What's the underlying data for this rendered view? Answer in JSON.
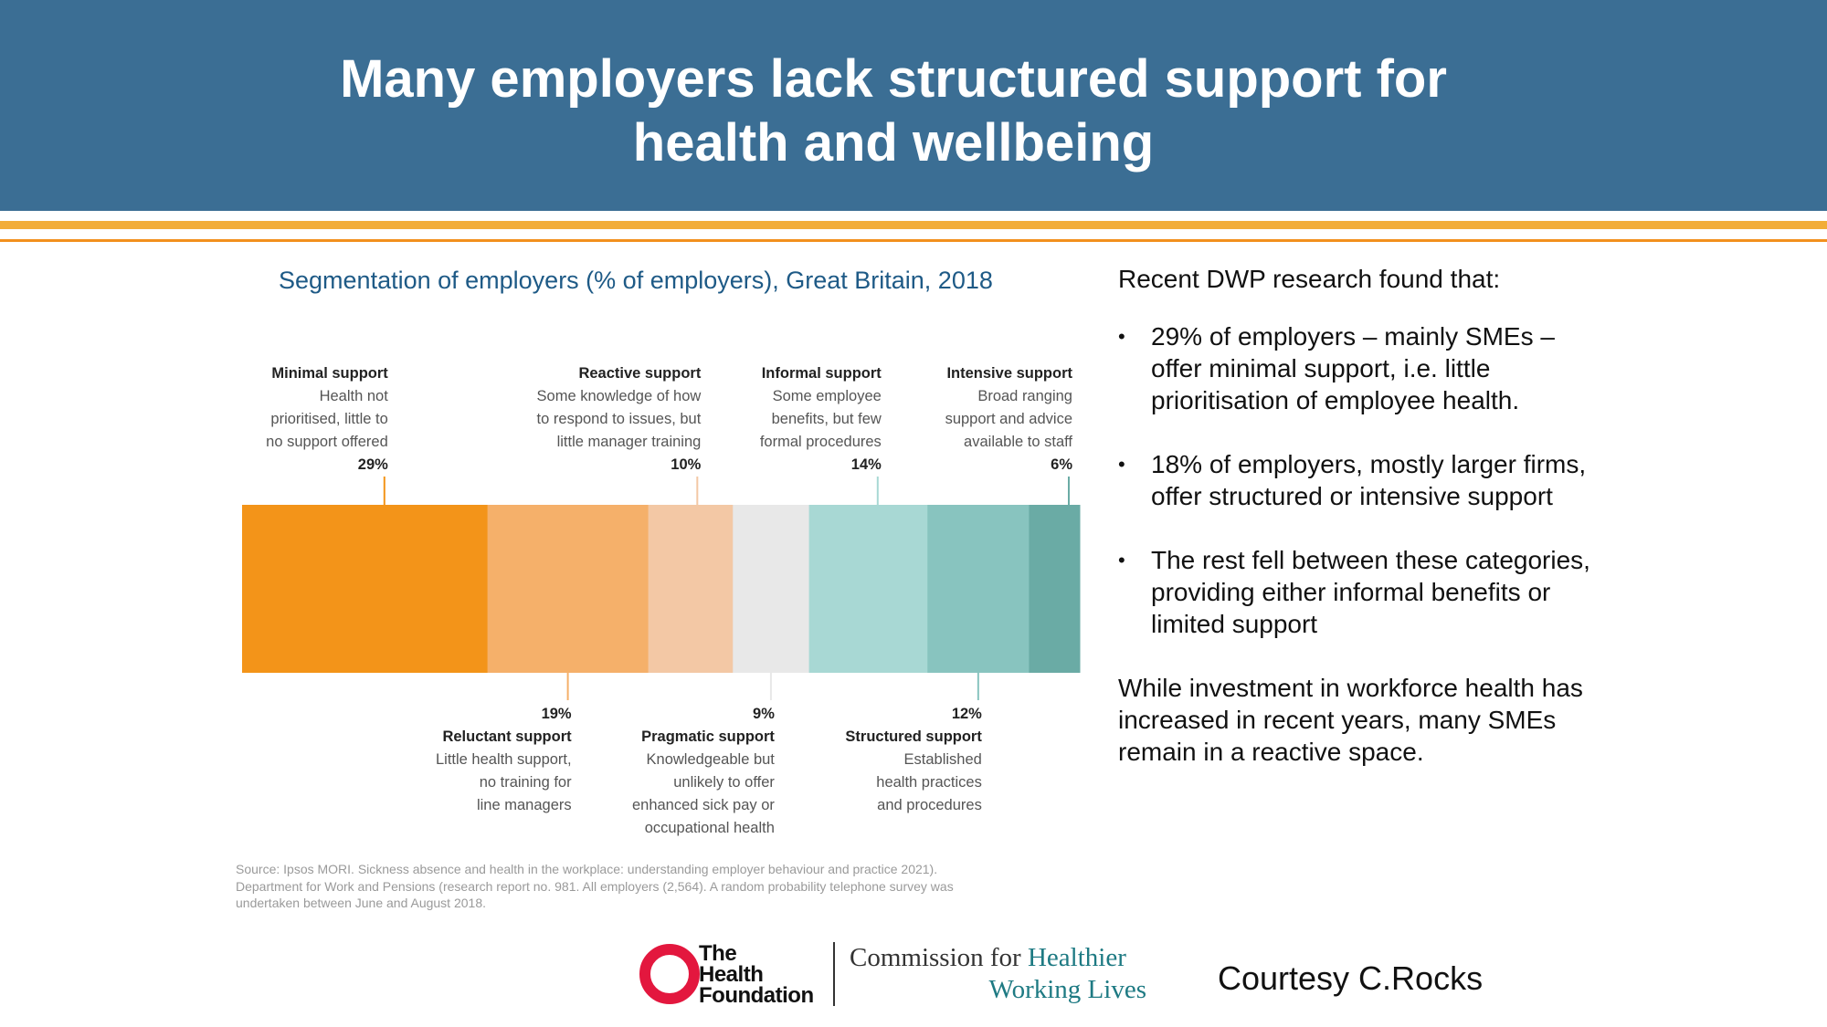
{
  "header": {
    "title_line1": "Many employers lack structured support for",
    "title_line2": "health and wellbeing",
    "background_color": "#3b6e94"
  },
  "chart_data": {
    "type": "bar",
    "stacked": true,
    "orientation": "horizontal",
    "title": "Segmentation of employers (% of employers), Great Britain, 2018",
    "xlabel": "",
    "ylabel": "",
    "xlim": [
      0,
      100
    ],
    "categories": [
      "Minimal support",
      "Reluctant support",
      "Reactive support",
      "Pragmatic support",
      "Informal support",
      "Structured support",
      "Intensive support"
    ],
    "values": [
      29,
      19,
      10,
      9,
      14,
      12,
      6
    ],
    "value_labels": [
      "29%",
      "19%",
      "10%",
      "9%",
      "14%",
      "12%",
      "6%"
    ],
    "descriptions": [
      [
        "Health not",
        "prioritised, little to",
        "no support offered"
      ],
      [
        "Little health support,",
        "no training for",
        "line managers"
      ],
      [
        "Some knowledge of how",
        "to respond to issues, but",
        "little manager training"
      ],
      [
        "Knowledgeable but",
        "unlikely to offer",
        "enhanced sick pay or",
        "occupational health"
      ],
      [
        "Some employee",
        "benefits, but few",
        "formal procedures"
      ],
      [
        "Established",
        "health practices",
        "and procedures"
      ],
      [
        "Broad ranging",
        "support and advice",
        "available to staff"
      ]
    ],
    "label_positions": [
      "top",
      "bottom",
      "top",
      "bottom",
      "top",
      "bottom",
      "top"
    ],
    "colors": [
      "#f39419",
      "#f5b06a",
      "#f3c8a5",
      "#e8e8e8",
      "#a8d8d4",
      "#88c4bf",
      "#6aaba5"
    ]
  },
  "source": {
    "line1": "Source: Ipsos MORI. Sickness absence and health in the workplace: understanding employer behaviour and practice 2021).",
    "line2": "Department for Work and Pensions (research report no. 981. All employers (2,564). A random probability telephone survey was",
    "line3": "undertaken between June and August 2018."
  },
  "sidebar": {
    "intro": "Recent DWP research found that:",
    "bullets": [
      "29% of employers – mainly SMEs – offer minimal support, i.e. little prioritisation of employee health.",
      "18% of employers, mostly larger firms, offer structured or intensive support",
      "The rest fell between these categories, providing either informal benefits or limited support"
    ],
    "conclusion": "While investment in workforce health has increased in recent years, many SMEs remain in a reactive space."
  },
  "footer": {
    "hf_line1": "The",
    "hf_line2": "Health",
    "hf_line3": "Foundation",
    "commission_part1": "Commission for ",
    "commission_part2": "Healthier",
    "commission_line2": "Working Lives",
    "courtesy": "Courtesy C.Rocks"
  }
}
